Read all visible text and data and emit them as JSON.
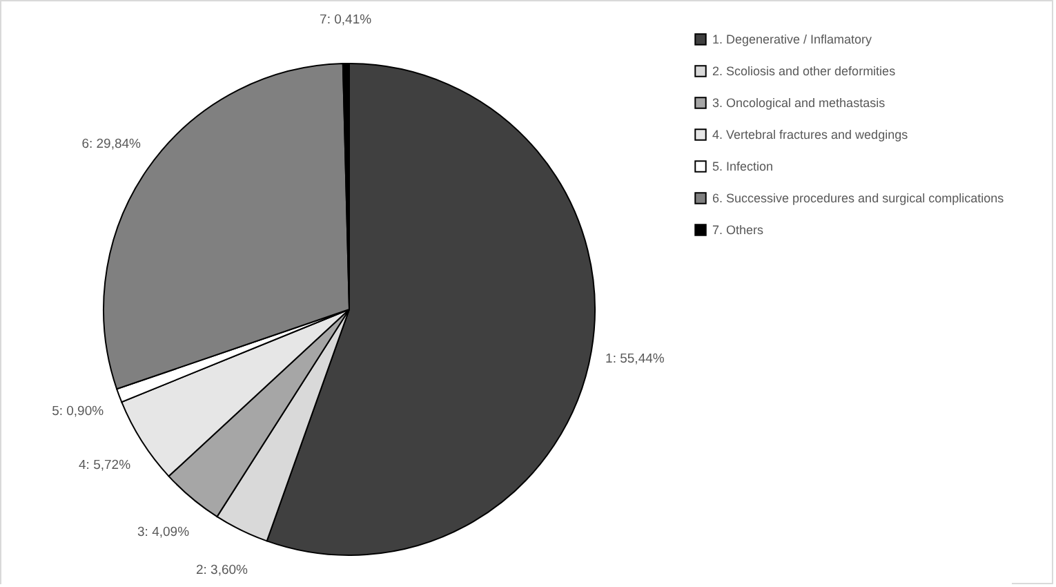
{
  "chart_data": {
    "type": "pie",
    "categories": [
      "1. Degenerative / Inflamatory",
      "2. Scoliosis and other deformities",
      "3. Oncological and methastasis",
      "4. Vertebral fractures and wedgings",
      "5. Infection",
      "6. Successive procedures and surgical complications",
      "7. Others"
    ],
    "values": [
      55.44,
      3.6,
      4.09,
      5.72,
      0.9,
      29.84,
      0.41
    ],
    "colors": [
      "#404040",
      "#d9d9d9",
      "#a6a6a6",
      "#e6e6e6",
      "#ffffff",
      "#808080",
      "#000000"
    ],
    "value_labels": [
      "1: 55,44%",
      "2: 3,60%",
      "3: 4,09%",
      "4: 5,72%",
      "5: 0,90%",
      "6: 29,84%",
      "7: 0,41%"
    ],
    "legend": "right"
  }
}
